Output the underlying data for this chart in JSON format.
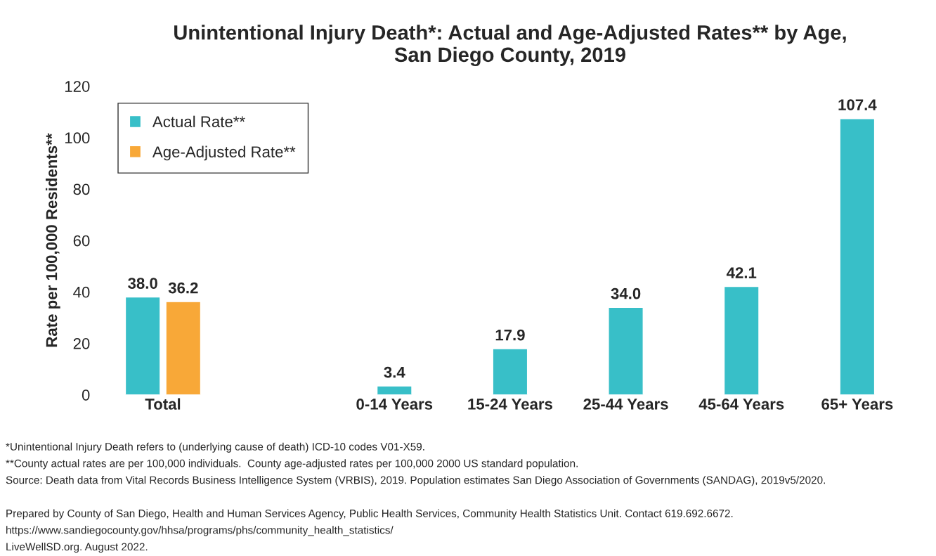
{
  "chart_data": {
    "type": "bar",
    "title": "Unintentional Injury Death*: Actual and Age-Adjusted Rates** by Age,\nSan Diego County, 2019",
    "ylabel": "Rate per 100,000 Residents**",
    "categories": [
      "Total",
      null,
      "0-14 Years",
      "15-24 Years",
      "25-44 Years",
      "45-64 Years",
      "65+ Years"
    ],
    "series": [
      {
        "name": "Actual Rate**",
        "color": "#38bfc8",
        "values": [
          38.0,
          null,
          3.4,
          17.9,
          34.0,
          42.1,
          107.4
        ]
      },
      {
        "name": "Age-Adjusted Rate**",
        "color": "#f8a838",
        "values": [
          36.2,
          null,
          null,
          null,
          null,
          null,
          null
        ]
      }
    ],
    "value_labels": [
      [
        "38.0",
        null,
        "3.4",
        "17.9",
        "34.0",
        "42.1",
        "107.4"
      ],
      [
        "36.2",
        null,
        null,
        null,
        null,
        null,
        null
      ]
    ],
    "ylim": [
      0,
      120
    ],
    "yticks": [
      0,
      20,
      40,
      60,
      80,
      100,
      120
    ],
    "grid": false,
    "legend": "top left",
    "annotations": [
      "*Unintentional Injury Death refers to (underlying cause of death) ICD-10 codes V01-X59.",
      "**County actual rates are per 100,000 individuals.  County age-adjusted rates per 100,000 2000 US standard population.",
      "Source: Death data from Vital Records Business Intelligence System (VRBIS), 2019. Population estimates San Diego Association of Governments (SANDAG), 2019v5/2020.",
      "Prepared by County of San Diego, Health and Human Services Agency, Public Health Services, Community Health Statistics Unit. Contact 619.692.6672.",
      "https://www.sandiegocounty.gov/hhsa/programs/phs/community_health_statistics/",
      "LiveWellSD.org. August 2022."
    ]
  }
}
